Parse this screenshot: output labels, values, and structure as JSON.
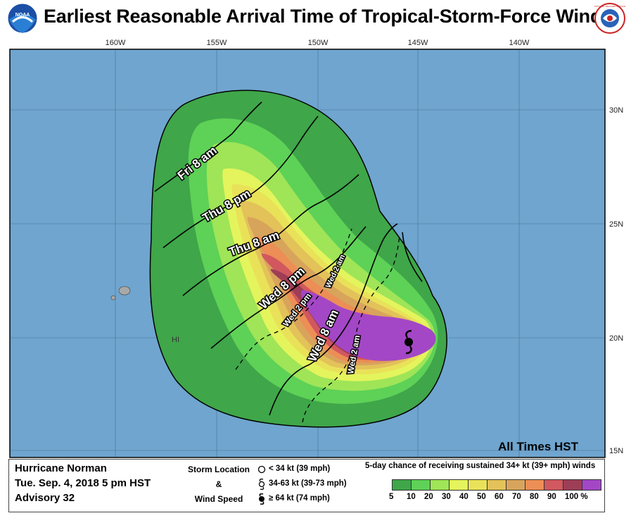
{
  "title": "Earliest Reasonable Arrival Time of Tropical-Storm-Force Winds",
  "logos": {
    "left": "noaa-logo",
    "left_text": "NOAA",
    "right": "nws-logo",
    "right_text": "NATIONAL WEATHER SERVICE"
  },
  "map": {
    "lon_labels": [
      "160W",
      "155W",
      "150W",
      "145W",
      "140W"
    ],
    "lat_labels": [
      "30N",
      "25N",
      "20N",
      "15N"
    ],
    "place_label": "HI",
    "all_times_label": "All Times HST",
    "contour_labels": [
      "Fri 8 am",
      "Thu 8 pm",
      "Thu 8 am",
      "Wed 8 pm",
      "Wed 8 am",
      "Wed 2 pm",
      "Wed 2 am",
      "Wed 2 am"
    ]
  },
  "legend": {
    "storm_name": "Hurricane Norman",
    "datetime": "Tue. Sep. 4, 2018  5 pm HST",
    "advisory": "Advisory 32",
    "storm_location_label": "Storm Location",
    "amp": "&",
    "wind_speed_label": "Wind Speed",
    "intensities": [
      {
        "icon": "open-circle-icon",
        "text": "< 34 kt (39 mph)"
      },
      {
        "icon": "tropical-storm-icon",
        "text": "34-63 kt (39-73 mph)"
      },
      {
        "icon": "hurricane-icon",
        "text": "≥ 64 kt (74 mph)"
      }
    ],
    "probability_title": "5-day chance of receiving sustained 34+ kt (39+ mph) winds",
    "scale_labels": [
      "5",
      "10",
      "20",
      "30",
      "40",
      "50",
      "60",
      "70",
      "80",
      "90",
      "100 %"
    ],
    "scale_colors": [
      "#3fa649",
      "#5ed157",
      "#9fe557",
      "#e4f45d",
      "#e9e259",
      "#e3c25a",
      "#d8a45c",
      "#ec8e56",
      "#d1585e",
      "#9e3e56",
      "#a347c6"
    ]
  }
}
